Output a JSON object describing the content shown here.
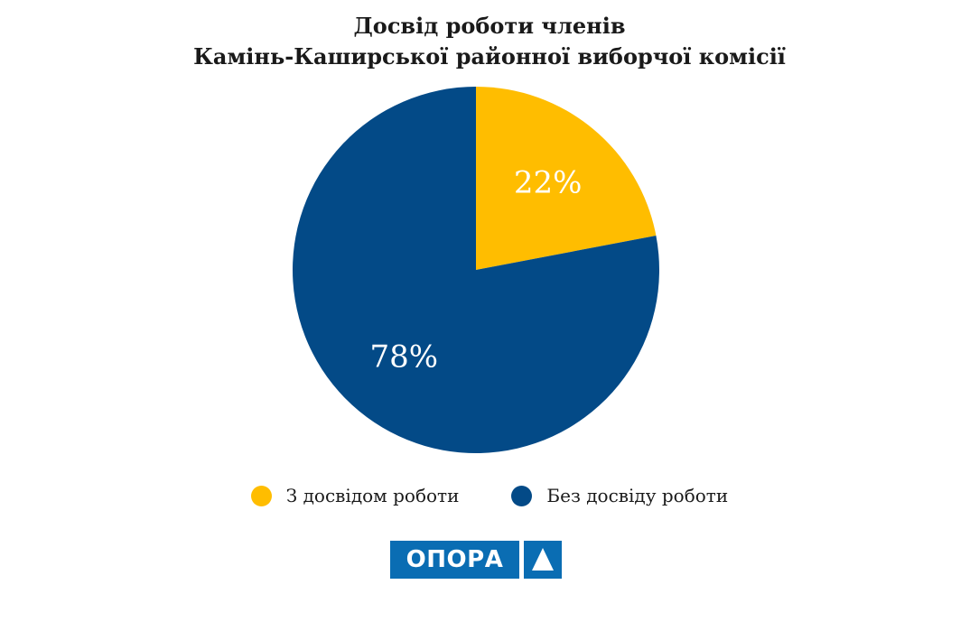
{
  "chart_data": {
    "type": "pie",
    "title": [
      "Досвід роботи членів",
      "Камінь-Каширської районної виборчої комісії"
    ],
    "slices": [
      {
        "name": "З досвідом роботи",
        "value": 22,
        "label": "22%",
        "color": "#FFBD00"
      },
      {
        "name": "Без досвіду роботи",
        "value": 78,
        "label": "78%",
        "color": "#034A87"
      }
    ],
    "legend": "bottom",
    "start": "top-clockwise"
  },
  "logo": {
    "text": "ОПОРА",
    "icon": "triangle-icon",
    "color": "#0A6DB3"
  }
}
